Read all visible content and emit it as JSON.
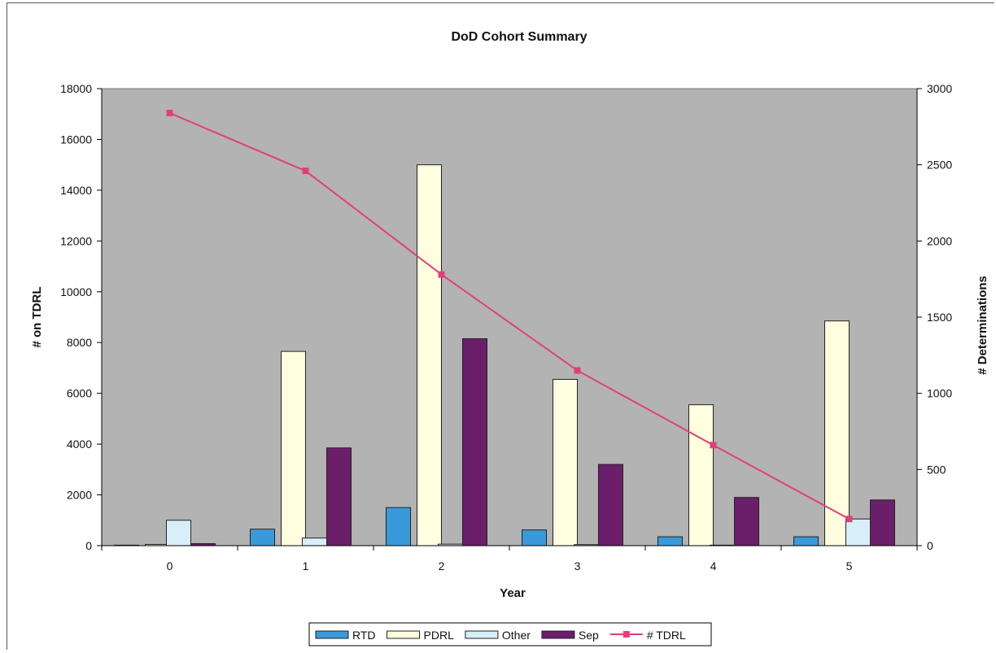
{
  "chart_data": {
    "type": "bar",
    "title": "DoD Cohort Summary",
    "xlabel": "Year",
    "ylabel": "# on TDRL",
    "y2label": "# Determinations",
    "categories": [
      "0",
      "1",
      "2",
      "3",
      "4",
      "5"
    ],
    "ylim": [
      0,
      18000
    ],
    "yticks": [
      0,
      2000,
      4000,
      6000,
      8000,
      10000,
      12000,
      14000,
      16000,
      18000
    ],
    "y2lim": [
      0,
      3000
    ],
    "y2ticks": [
      0,
      500,
      1000,
      1500,
      2000,
      2500,
      3000
    ],
    "grid": false,
    "legend_position": "bottom",
    "series": [
      {
        "name": "RTD",
        "type": "bar",
        "axis": "left",
        "color": "#3a9ad9",
        "values": [
          20,
          650,
          1500,
          620,
          350,
          350
        ]
      },
      {
        "name": "PDRL",
        "type": "bar",
        "axis": "left",
        "color": "#ffffdf",
        "values": [
          50,
          7650,
          15000,
          6550,
          5550,
          8850
        ]
      },
      {
        "name": "Other",
        "type": "bar",
        "axis": "left",
        "color": "#d8eef8",
        "values": [
          1000,
          300,
          60,
          40,
          20,
          1050
        ]
      },
      {
        "name": "Sep",
        "type": "bar",
        "axis": "left",
        "color": "#6b1f6b",
        "values": [
          80,
          3850,
          8150,
          3200,
          1900,
          1800
        ]
      },
      {
        "name": "# TDRL",
        "type": "line",
        "axis": "right",
        "color": "#e0407a",
        "values": [
          2840,
          2460,
          1780,
          1150,
          660,
          175
        ]
      }
    ]
  }
}
